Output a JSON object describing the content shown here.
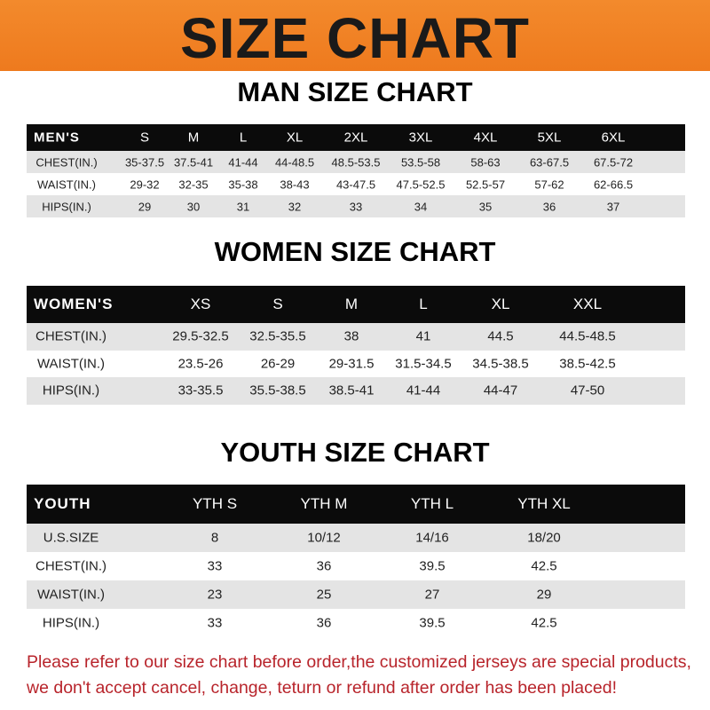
{
  "banner": {
    "title": "SIZE CHART",
    "color": "#f07d22"
  },
  "men": {
    "title": "MAN SIZE CHART",
    "header": [
      "MEN'S",
      "S",
      "M",
      "L",
      "XL",
      "2XL",
      "3XL",
      "4XL",
      "5XL",
      "6XL"
    ],
    "rows": [
      [
        "CHEST(IN.)",
        "35-37.5",
        "37.5-41",
        "41-44",
        "44-48.5",
        "48.5-53.5",
        "53.5-58",
        "58-63",
        "63-67.5",
        "67.5-72"
      ],
      [
        "WAIST(IN.)",
        "29-32",
        "32-35",
        "35-38",
        "38-43",
        "43-47.5",
        "47.5-52.5",
        "52.5-57",
        "57-62",
        "62-66.5"
      ],
      [
        "HIPS(IN.)",
        "29",
        "30",
        "31",
        "32",
        "33",
        "34",
        "35",
        "36",
        "37"
      ]
    ]
  },
  "women": {
    "title": "WOMEN SIZE CHART",
    "header": [
      "WOMEN'S",
      "XS",
      "S",
      "M",
      "L",
      "XL",
      "XXL"
    ],
    "rows": [
      [
        "CHEST(IN.)",
        "29.5-32.5",
        "32.5-35.5",
        "38",
        "41",
        "44.5",
        "44.5-48.5"
      ],
      [
        "WAIST(IN.)",
        "23.5-26",
        "26-29",
        "29-31.5",
        "31.5-34.5",
        "34.5-38.5",
        "38.5-42.5"
      ],
      [
        "HIPS(IN.)",
        "33-35.5",
        "35.5-38.5",
        "38.5-41",
        "41-44",
        "44-47",
        "47-50"
      ]
    ]
  },
  "youth": {
    "title": "YOUTH SIZE CHART",
    "header": [
      "YOUTH",
      "YTH S",
      "YTH M",
      "YTH L",
      "YTH XL"
    ],
    "rows": [
      [
        "U.S.SIZE",
        "8",
        "10/12",
        "14/16",
        "18/20"
      ],
      [
        "CHEST(IN.)",
        "33",
        "36",
        "39.5",
        "42.5"
      ],
      [
        "WAIST(IN.)",
        "23",
        "25",
        "27",
        "29"
      ],
      [
        "HIPS(IN.)",
        "33",
        "36",
        "39.5",
        "42.5"
      ]
    ]
  },
  "note": {
    "line1": "Please refer to our size chart before order,the customized jerseys are special products,",
    "line2": "we don't accept cancel, change, teturn or refund after order has been placed!"
  }
}
